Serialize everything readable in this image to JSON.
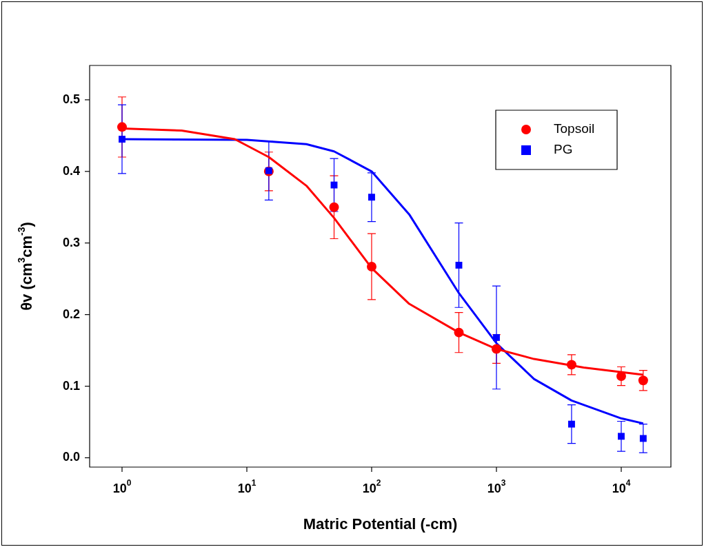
{
  "chart_data": {
    "type": "scatter",
    "xlabel": "Matric Potential (-cm)",
    "ylabel": "θv (cm$^{3}$cm$^{-3}$)",
    "log": "x",
    "grid": false,
    "legend": "top right",
    "xlim": [
      0.55,
      25000
    ],
    "ylim": [
      -0.013,
      0.548
    ],
    "xticks": [
      {
        "value": 1,
        "label": "10$^{0}$"
      },
      {
        "value": 10,
        "label": "10$^{1}$"
      },
      {
        "value": 100,
        "label": "10$^{2}$"
      },
      {
        "value": 1000,
        "label": "10$^{3}$"
      },
      {
        "value": 10000,
        "label": "10$^{4}$"
      }
    ],
    "yticks": [
      {
        "value": 0,
        "label": "0.0"
      },
      {
        "value": 0.1,
        "label": "0.1"
      },
      {
        "value": 0.2,
        "label": "0.2"
      },
      {
        "value": 0.3,
        "label": "0.3"
      },
      {
        "value": 0.4,
        "label": "0.4"
      },
      {
        "value": 0.5,
        "label": "0.5"
      }
    ],
    "x": [
      1,
      15,
      50,
      100,
      500,
      1000,
      4000,
      10000,
      15000
    ],
    "series": [
      {
        "name": "Topsoil",
        "color": "#ff0000",
        "marker": "circle",
        "values": [
          0.462,
          0.4,
          0.35,
          0.267,
          0.175,
          0.152,
          0.13,
          0.114,
          0.108
        ],
        "errors": [
          0.042,
          0.027,
          0.044,
          0.046,
          0.028,
          0.02,
          0.014,
          0.013,
          0.014
        ]
      },
      {
        "name": "PG",
        "color": "#0000ff",
        "marker": "square",
        "values": [
          0.445,
          0.401,
          0.381,
          0.364,
          0.269,
          0.168,
          0.047,
          0.03,
          0.027
        ],
        "errors": [
          0.048,
          0.041,
          0.037,
          0.034,
          0.059,
          0.072,
          0.027,
          0.021,
          0.02
        ]
      },
      {
        "type": "line",
        "color": "#ff0000",
        "marker": "none",
        "x": [
          1,
          3,
          8,
          15,
          30,
          50,
          100,
          200,
          500,
          1000,
          2000,
          5000,
          15000
        ],
        "values": [
          0.46,
          0.457,
          0.445,
          0.42,
          0.38,
          0.335,
          0.265,
          0.215,
          0.175,
          0.152,
          0.138,
          0.126,
          0.116
        ]
      },
      {
        "type": "line",
        "color": "#0000ff",
        "marker": "none",
        "x": [
          1,
          10,
          30,
          50,
          100,
          200,
          500,
          1000,
          2000,
          4000,
          10000,
          15000
        ],
        "values": [
          0.445,
          0.444,
          0.438,
          0.428,
          0.4,
          0.34,
          0.23,
          0.16,
          0.11,
          0.08,
          0.055,
          0.048
        ]
      }
    ]
  }
}
